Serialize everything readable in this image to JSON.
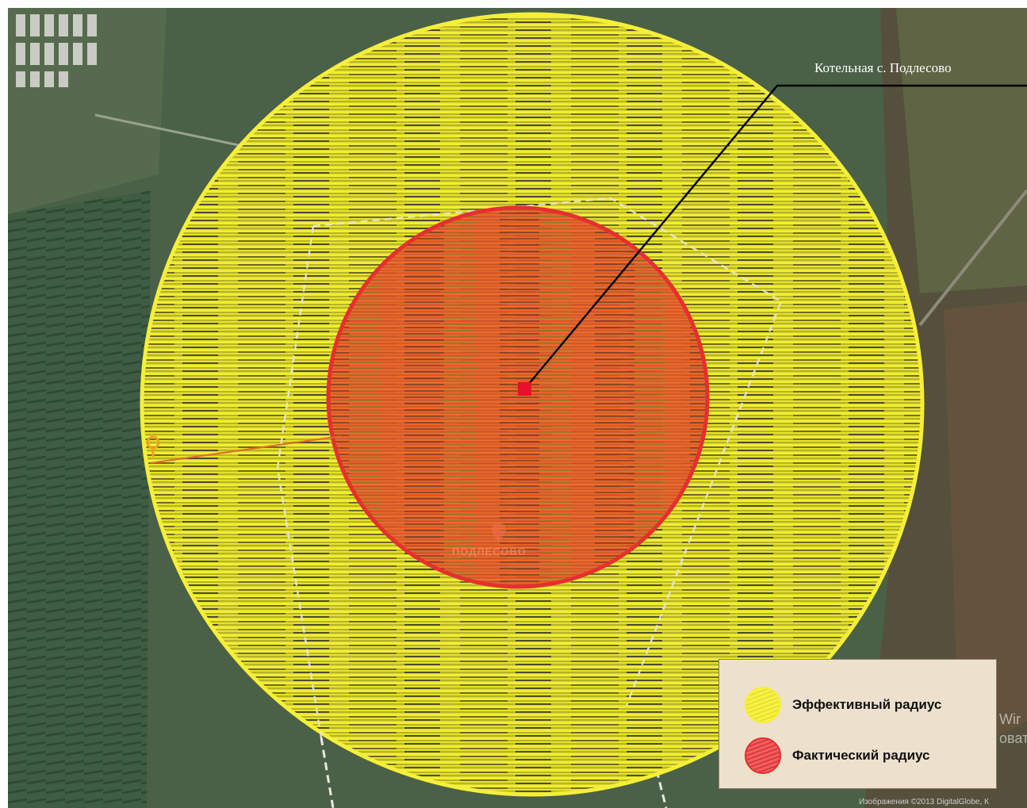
{
  "callout": {
    "label": "Котельная с. Подлесово"
  },
  "map": {
    "settlement_label": "ПОДЛЕСОВО",
    "watermark_line1": "Wir",
    "watermark_line2": "оват",
    "copyright": "Изображения ©2013 DigitalGlobe, К"
  },
  "legend": {
    "items": [
      {
        "label": "Эффективный радиус",
        "color": "#f5ef3a"
      },
      {
        "label": "Фактический радиус",
        "color": "#e62f2f"
      }
    ]
  },
  "colors": {
    "effective_radius": "#f5ef3a",
    "actual_radius": "#e62f2f",
    "boiler_marker": "#e8102a"
  }
}
